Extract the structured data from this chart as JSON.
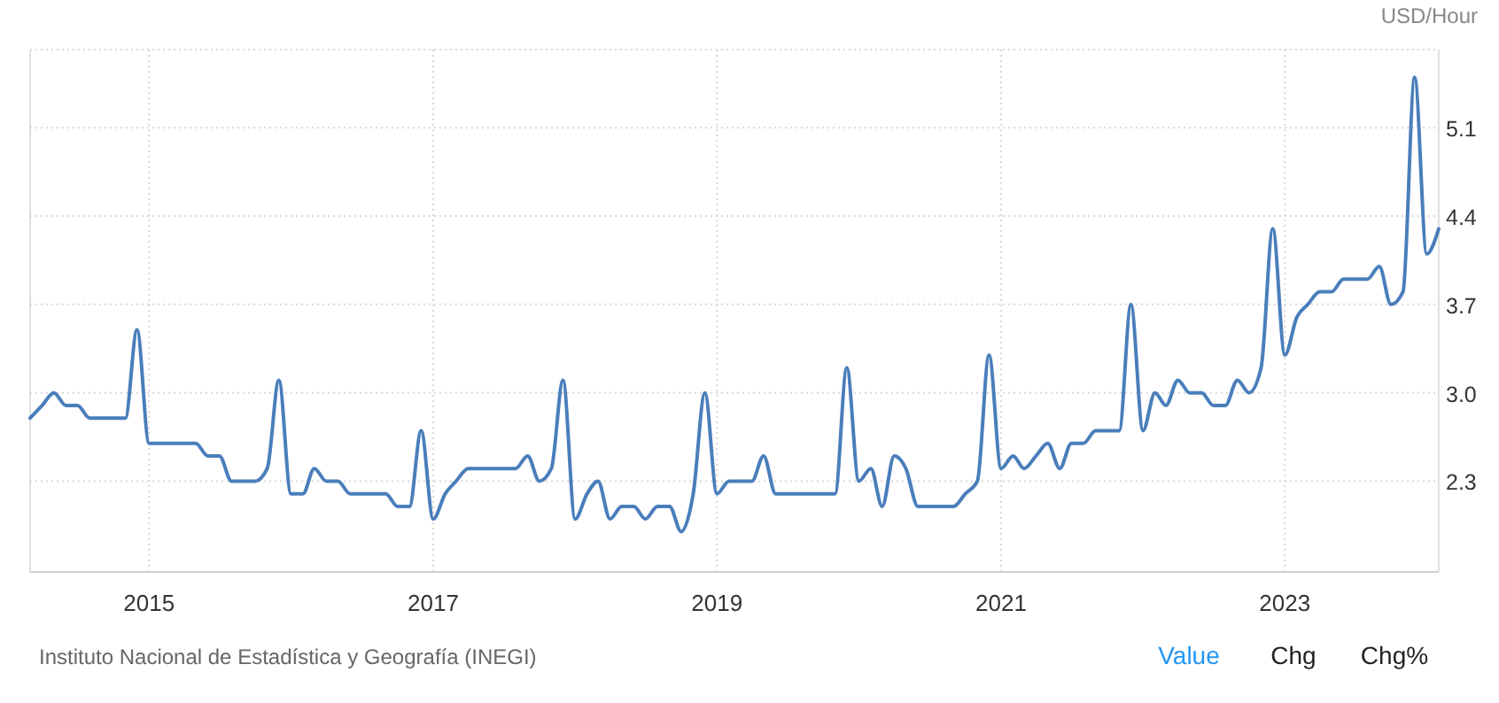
{
  "chart_data": {
    "type": "line",
    "ylabel": "USD/Hour",
    "x": [
      "2014-03",
      "2014-04",
      "2014-05",
      "2014-06",
      "2014-07",
      "2014-08",
      "2014-09",
      "2014-10",
      "2014-11",
      "2014-12",
      "2015-01",
      "2015-02",
      "2015-03",
      "2015-04",
      "2015-05",
      "2015-06",
      "2015-07",
      "2015-08",
      "2015-09",
      "2015-10",
      "2015-11",
      "2015-12",
      "2016-01",
      "2016-02",
      "2016-03",
      "2016-04",
      "2016-05",
      "2016-06",
      "2016-07",
      "2016-08",
      "2016-09",
      "2016-10",
      "2016-11",
      "2016-12",
      "2017-01",
      "2017-02",
      "2017-03",
      "2017-04",
      "2017-05",
      "2017-06",
      "2017-07",
      "2017-08",
      "2017-09",
      "2017-10",
      "2017-11",
      "2017-12",
      "2018-01",
      "2018-02",
      "2018-03",
      "2018-04",
      "2018-05",
      "2018-06",
      "2018-07",
      "2018-08",
      "2018-09",
      "2018-10",
      "2018-11",
      "2018-12",
      "2019-01",
      "2019-02",
      "2019-03",
      "2019-04",
      "2019-05",
      "2019-06",
      "2019-07",
      "2019-08",
      "2019-09",
      "2019-10",
      "2019-11",
      "2019-12",
      "2020-01",
      "2020-02",
      "2020-03",
      "2020-04",
      "2020-05",
      "2020-06",
      "2020-07",
      "2020-08",
      "2020-09",
      "2020-10",
      "2020-11",
      "2020-12",
      "2021-01",
      "2021-02",
      "2021-03",
      "2021-04",
      "2021-05",
      "2021-06",
      "2021-07",
      "2021-08",
      "2021-09",
      "2021-10",
      "2021-11",
      "2021-12",
      "2022-01",
      "2022-02",
      "2022-03",
      "2022-04",
      "2022-05",
      "2022-06",
      "2022-07",
      "2022-08",
      "2022-09",
      "2022-10",
      "2022-11",
      "2022-12",
      "2023-01",
      "2023-02",
      "2023-03",
      "2023-04",
      "2023-05",
      "2023-06",
      "2023-07",
      "2023-08",
      "2023-09",
      "2023-10",
      "2023-11",
      "2023-12",
      "2024-01",
      "2024-02"
    ],
    "series": [
      {
        "color": "#4a7ebb",
        "values": [
          2.8,
          2.9,
          3.0,
          2.9,
          2.9,
          2.8,
          2.8,
          2.8,
          2.8,
          3.5,
          2.6,
          2.6,
          2.6,
          2.6,
          2.6,
          2.5,
          2.5,
          2.3,
          2.3,
          2.3,
          2.4,
          3.1,
          2.2,
          2.2,
          2.4,
          2.3,
          2.3,
          2.2,
          2.2,
          2.2,
          2.2,
          2.1,
          2.1,
          2.7,
          2.0,
          2.2,
          2.3,
          2.4,
          2.4,
          2.4,
          2.4,
          2.4,
          2.5,
          2.3,
          2.4,
          3.1,
          2.0,
          2.2,
          2.3,
          2.0,
          2.1,
          2.1,
          2.0,
          2.1,
          2.1,
          1.9,
          2.2,
          3.0,
          2.2,
          2.3,
          2.3,
          2.3,
          2.5,
          2.2,
          2.2,
          2.2,
          2.2,
          2.2,
          2.2,
          3.2,
          2.3,
          2.4,
          2.1,
          2.5,
          2.4,
          2.1,
          2.1,
          2.1,
          2.1,
          2.2,
          2.3,
          3.3,
          2.4,
          2.5,
          2.4,
          2.5,
          2.6,
          2.4,
          2.6,
          2.6,
          2.7,
          2.7,
          2.7,
          3.7,
          2.7,
          3.0,
          2.9,
          3.1,
          3.0,
          3.0,
          2.9,
          2.9,
          3.1,
          3.0,
          3.2,
          4.3,
          3.3,
          3.6,
          3.7,
          3.8,
          3.8,
          3.9,
          3.9,
          3.9,
          4.0,
          3.7,
          3.8,
          5.5,
          4.1,
          4.3
        ]
      }
    ],
    "xlim": [
      "2014-03",
      "2024-02"
    ],
    "xticks": [
      "2015",
      "2017",
      "2019",
      "2021",
      "2023"
    ],
    "ylim": [
      1.58,
      5.72
    ],
    "yticks": [
      2.3,
      {
        "value": 3,
        "label": "3.0"
      },
      3.7,
      4.4,
      5.1
    ],
    "grid": true,
    "marker": "none",
    "line_style": "solid",
    "annotations": [
      "Instituto Nacional de Estadística y Geografía (INEGI)",
      "Value",
      "Chg",
      "Chg%"
    ]
  }
}
